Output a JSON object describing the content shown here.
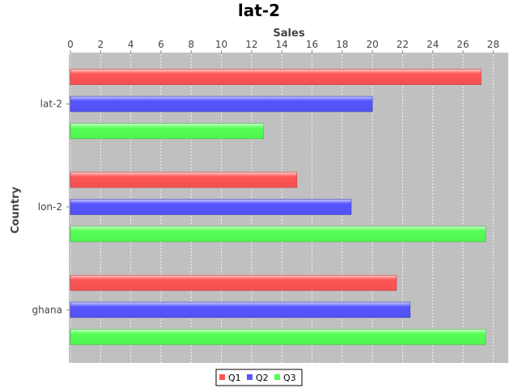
{
  "chart_data": {
    "type": "bar",
    "orientation": "horizontal",
    "title": "lat-2",
    "xlabel": "Sales",
    "ylabel": "Country",
    "categories": [
      "lat-2",
      "lon-2",
      "ghana"
    ],
    "series": [
      {
        "name": "Q1",
        "color": "#ff5555",
        "values": [
          27.2,
          15.0,
          21.6
        ]
      },
      {
        "name": "Q2",
        "color": "#5555ff",
        "values": [
          20.0,
          18.6,
          22.5
        ]
      },
      {
        "name": "Q3",
        "color": "#55ff55",
        "values": [
          12.8,
          27.5,
          27.5
        ]
      }
    ],
    "xlim": [
      0,
      29
    ],
    "xticks": [
      "0",
      "2",
      "4",
      "6",
      "8",
      "10",
      "12",
      "14",
      "16",
      "18",
      "20",
      "22",
      "24",
      "26",
      "28"
    ],
    "grid": true,
    "legend": "bottom",
    "plot_background": "#c0c0c0"
  }
}
